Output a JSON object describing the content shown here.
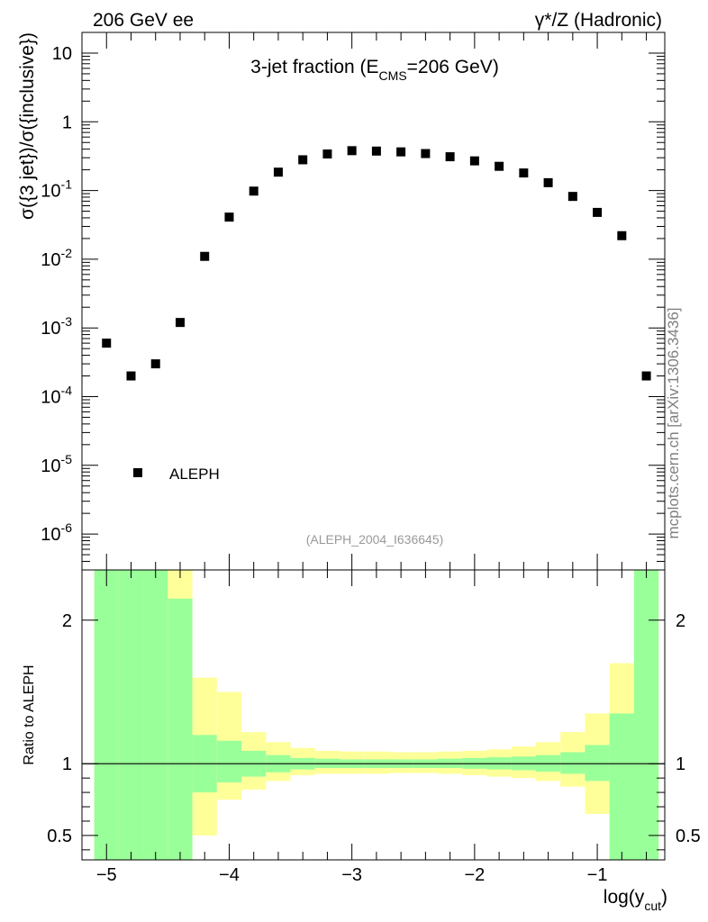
{
  "header": {
    "left_label": "206 GeV ee",
    "right_label_main": "γ*/Z (Hadronic)"
  },
  "side_label": "mcplots.cern.ch [arXiv:1306.3436]",
  "chart_data": [
    {
      "type": "scatter",
      "panel": "main",
      "title_prefix": "3-jet fraction (E",
      "title_sub": "CMS",
      "title_suffix": "=206 GeV)",
      "ylabel": "σ({3 jet})/σ({inclusive})",
      "yscale": "log",
      "ylim": [
        3e-07,
        20
      ],
      "xlim": [
        -5.2,
        -0.45
      ],
      "y_ticks": [
        {
          "base": "10",
          "exp": "-6",
          "value": 1e-06
        },
        {
          "base": "10",
          "exp": "-5",
          "value": 1e-05
        },
        {
          "base": "10",
          "exp": "-4",
          "value": 0.0001
        },
        {
          "base": "10",
          "exp": "-3",
          "value": 0.001
        },
        {
          "base": "10",
          "exp": "-2",
          "value": 0.01
        },
        {
          "base": "10",
          "exp": "-1",
          "value": 0.1
        },
        {
          "base": "1",
          "exp": "",
          "value": 1
        },
        {
          "base": "10",
          "exp": "",
          "value": 10
        }
      ],
      "series": [
        {
          "name": "ALEPH",
          "x": [
            -5.0,
            -4.8,
            -4.6,
            -4.4,
            -4.2,
            -4.0,
            -3.8,
            -3.6,
            -3.4,
            -3.2,
            -3.0,
            -2.8,
            -2.6,
            -2.4,
            -2.2,
            -2.0,
            -1.8,
            -1.6,
            -1.4,
            -1.2,
            -1.0,
            -0.8,
            -0.6
          ],
          "y": [
            0.0006,
            0.0002,
            0.0003,
            0.0012,
            0.011,
            0.041,
            0.098,
            0.185,
            0.28,
            0.34,
            0.38,
            0.375,
            0.365,
            0.345,
            0.31,
            0.27,
            0.225,
            0.18,
            0.13,
            0.082,
            0.048,
            0.022,
            0.0002
          ]
        }
      ],
      "legend": {
        "label": "ALEPH",
        "position": "bottom-left"
      },
      "annotation": "(ALEPH_2004_I636645)"
    },
    {
      "type": "area",
      "panel": "ratio",
      "ylabel": "Ratio to ALEPH",
      "xlabel_main": "log(y",
      "xlabel_sub": "cut",
      "xlabel_end": ")",
      "ylim": [
        0.33,
        2.35
      ],
      "reference_line": 1,
      "y_ticks": [
        0.5,
        1,
        2
      ],
      "y_tick_labels": [
        "0.5",
        "1",
        "2"
      ],
      "x_ticks": [
        -5,
        -4,
        -3,
        -2,
        -1
      ],
      "x_tick_labels": [
        "−5",
        "−4",
        "−3",
        "−2",
        "−1"
      ],
      "band_colors": {
        "inner": "#99ff99",
        "outer": "#ffff99"
      },
      "bins": [
        {
          "lo": -5.1,
          "hi": -4.9,
          "inner": [
            0.0,
            9.0
          ],
          "outer": [
            0.0,
            9.0
          ]
        },
        {
          "lo": -4.9,
          "hi": -4.7,
          "inner": [
            0.0,
            9.0
          ],
          "outer": [
            0.0,
            9.0
          ]
        },
        {
          "lo": -4.7,
          "hi": -4.5,
          "inner": [
            0.0,
            9.0
          ],
          "outer": [
            0.0,
            9.0
          ]
        },
        {
          "lo": -4.5,
          "hi": -4.3,
          "inner": [
            0.0,
            2.15
          ],
          "outer": [
            0.0,
            9.0
          ]
        },
        {
          "lo": -4.3,
          "hi": -4.1,
          "inner": [
            0.8,
            1.2
          ],
          "outer": [
            0.5,
            1.6
          ]
        },
        {
          "lo": -4.1,
          "hi": -3.9,
          "inner": [
            0.87,
            1.16
          ],
          "outer": [
            0.75,
            1.5
          ]
        },
        {
          "lo": -3.9,
          "hi": -3.7,
          "inner": [
            0.91,
            1.09
          ],
          "outer": [
            0.82,
            1.22
          ]
        },
        {
          "lo": -3.7,
          "hi": -3.5,
          "inner": [
            0.94,
            1.06
          ],
          "outer": [
            0.88,
            1.15
          ]
        },
        {
          "lo": -3.5,
          "hi": -3.3,
          "inner": [
            0.96,
            1.04
          ],
          "outer": [
            0.92,
            1.11
          ]
        },
        {
          "lo": -3.3,
          "hi": -3.1,
          "inner": [
            0.97,
            1.035
          ],
          "outer": [
            0.93,
            1.09
          ]
        },
        {
          "lo": -3.1,
          "hi": -2.9,
          "inner": [
            0.97,
            1.03
          ],
          "outer": [
            0.93,
            1.085
          ]
        },
        {
          "lo": -2.9,
          "hi": -2.7,
          "inner": [
            0.97,
            1.03
          ],
          "outer": [
            0.93,
            1.085
          ]
        },
        {
          "lo": -2.7,
          "hi": -2.5,
          "inner": [
            0.97,
            1.03
          ],
          "outer": [
            0.935,
            1.08
          ]
        },
        {
          "lo": -2.5,
          "hi": -2.3,
          "inner": [
            0.97,
            1.03
          ],
          "outer": [
            0.935,
            1.08
          ]
        },
        {
          "lo": -2.3,
          "hi": -2.1,
          "inner": [
            0.97,
            1.035
          ],
          "outer": [
            0.93,
            1.085
          ]
        },
        {
          "lo": -2.1,
          "hi": -1.9,
          "inner": [
            0.965,
            1.04
          ],
          "outer": [
            0.92,
            1.09
          ]
        },
        {
          "lo": -1.9,
          "hi": -1.7,
          "inner": [
            0.96,
            1.045
          ],
          "outer": [
            0.91,
            1.1
          ]
        },
        {
          "lo": -1.7,
          "hi": -1.5,
          "inner": [
            0.955,
            1.05
          ],
          "outer": [
            0.9,
            1.12
          ]
        },
        {
          "lo": -1.5,
          "hi": -1.3,
          "inner": [
            0.945,
            1.06
          ],
          "outer": [
            0.88,
            1.15
          ]
        },
        {
          "lo": -1.3,
          "hi": -1.1,
          "inner": [
            0.93,
            1.08
          ],
          "outer": [
            0.84,
            1.22
          ]
        },
        {
          "lo": -1.1,
          "hi": -0.9,
          "inner": [
            0.88,
            1.13
          ],
          "outer": [
            0.65,
            1.35
          ]
        },
        {
          "lo": -0.9,
          "hi": -0.7,
          "inner": [
            0.0,
            1.35
          ],
          "outer": [
            0.0,
            1.7
          ]
        },
        {
          "lo": -0.7,
          "hi": -0.5,
          "inner": [
            0.0,
            9.0
          ],
          "outer": [
            0.0,
            9.0
          ]
        }
      ]
    }
  ]
}
